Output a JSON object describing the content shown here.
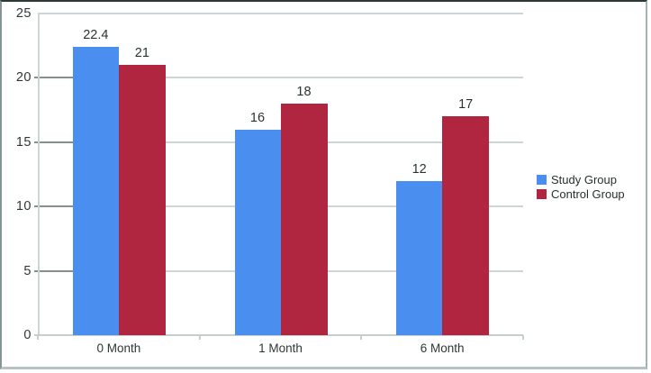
{
  "chart_data": {
    "type": "bar",
    "title": "",
    "xlabel": "",
    "ylabel": "",
    "categories": [
      "0 Month",
      "1 Month",
      "6 Month"
    ],
    "series": [
      {
        "name": "Study Group",
        "color": "#4a8ff0",
        "values": [
          22.4,
          16,
          12
        ]
      },
      {
        "name": "Control Group",
        "color": "#b02540",
        "values": [
          21,
          18,
          17
        ]
      }
    ],
    "y_ticks": [
      0,
      5,
      10,
      15,
      20,
      25
    ],
    "y_tick_labels": [
      "0",
      "5",
      "10",
      "15",
      "20",
      "25"
    ],
    "ylim": [
      0,
      25
    ],
    "grid": true,
    "value_labels": [
      [
        "22.4",
        "16",
        "12"
      ],
      [
        "21",
        "18",
        "17"
      ]
    ],
    "legend_position": "right"
  },
  "colors": {
    "gridline": "#ccd6d4",
    "gridline_dark_segment": "#859090",
    "text": "#2e3737",
    "frame_border_top": "#2e3838",
    "frame_border_bottom": "#b5c4c2"
  }
}
